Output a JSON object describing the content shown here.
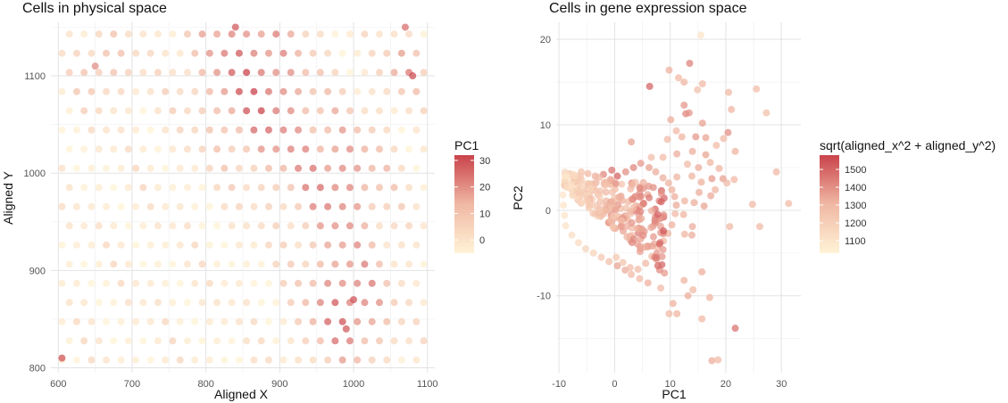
{
  "chart_data": [
    {
      "type": "scatter",
      "title": "Cells in physical space",
      "xlabel": "Aligned X",
      "ylabel": "Aligned Y",
      "xlim": [
        590,
        1110
      ],
      "ylim": [
        795,
        1155
      ],
      "x_ticks": [
        600,
        700,
        800,
        900,
        1000,
        1100
      ],
      "y_ticks": [
        800,
        900,
        1000,
        1100
      ],
      "grid": true,
      "legend": {
        "title": "PC1",
        "position": "right",
        "range": [
          -5,
          32
        ],
        "ticks": [
          0,
          10,
          20,
          30
        ],
        "low_color": "#fff3d6",
        "high_color": "#c9434b"
      },
      "layout": {
        "x_start": 605,
        "x_step": 20,
        "x_count": 25,
        "y_start": 808,
        "y_step": 19.7,
        "y_count": 18,
        "offset_odd_rows": 10
      },
      "sample_points": [
        {
          "x": 840,
          "y": 1150,
          "pc1": 28
        },
        {
          "x": 1080,
          "y": 1100,
          "pc1": 30
        },
        {
          "x": 1000,
          "y": 870,
          "pc1": 29
        },
        {
          "x": 990,
          "y": 840,
          "pc1": 28
        },
        {
          "x": 605,
          "y": 810,
          "pc1": 29
        },
        {
          "x": 1070,
          "y": 1150,
          "pc1": 25
        },
        {
          "x": 650,
          "y": 1110,
          "pc1": 20
        }
      ]
    },
    {
      "type": "scatter",
      "title": "Cells in gene expression space",
      "xlabel": "PC1",
      "ylabel": "PC2",
      "xlim": [
        -10.5,
        33.5
      ],
      "ylim": [
        -19,
        22
      ],
      "x_ticks": [
        -10,
        0,
        10,
        20,
        30
      ],
      "y_ticks": [
        -10,
        0,
        10,
        20
      ],
      "grid": true,
      "legend": {
        "title": "sqrt(aligned_x^2 + aligned_y^2)",
        "position": "right",
        "range": [
          1030,
          1580
        ],
        "ticks": [
          1100,
          1200,
          1300,
          1400,
          1500
        ],
        "low_color": "#fff3d6",
        "high_color": "#c9434b"
      },
      "points": [
        [
          15.5,
          20.5,
          1100
        ],
        [
          13.5,
          17.2,
          1430
        ],
        [
          9.8,
          16.4,
          1320
        ],
        [
          11.5,
          15.5,
          1300
        ],
        [
          15.8,
          14.8,
          1300
        ],
        [
          12.5,
          15.0,
          1310
        ],
        [
          6.3,
          14.5,
          1500
        ],
        [
          14.9,
          14.1,
          1260
        ],
        [
          25.5,
          14.2,
          1280
        ],
        [
          20.5,
          13.8,
          1300
        ],
        [
          12.5,
          12.3,
          1380
        ],
        [
          27.3,
          11.4,
          1270
        ],
        [
          21.0,
          11.8,
          1310
        ],
        [
          12.8,
          11.3,
          1420
        ],
        [
          13.4,
          11.4,
          1390
        ],
        [
          10.1,
          10.6,
          1330
        ],
        [
          15.8,
          10.2,
          1360
        ],
        [
          20.4,
          9.1,
          1400
        ],
        [
          11.1,
          9.3,
          1300
        ],
        [
          14.6,
          8.6,
          1380
        ],
        [
          16.4,
          8.5,
          1350
        ],
        [
          9.5,
          8.3,
          1300
        ],
        [
          12.1,
          8.6,
          1310
        ],
        [
          19.6,
          8.4,
          1300
        ],
        [
          3.0,
          8.0,
          1360
        ],
        [
          18.3,
          7.6,
          1290
        ],
        [
          21.7,
          6.9,
          1310
        ],
        [
          14.0,
          6.9,
          1330
        ],
        [
          16.4,
          6.5,
          1350
        ],
        [
          11.2,
          6.6,
          1330
        ],
        [
          6.6,
          6.2,
          1280
        ],
        [
          8.7,
          6.2,
          1290
        ],
        [
          17.2,
          5.6,
          1310
        ],
        [
          13.1,
          5.4,
          1290
        ],
        [
          15.1,
          5.0,
          1330
        ],
        [
          18.8,
          4.9,
          1310
        ],
        [
          29.1,
          4.5,
          1300
        ],
        [
          17.5,
          3.7,
          1370
        ],
        [
          19.5,
          3.7,
          1360
        ],
        [
          21.5,
          3.6,
          1300
        ],
        [
          11.2,
          3.9,
          1310
        ],
        [
          13.9,
          4.0,
          1310
        ],
        [
          15.6,
          3.3,
          1320
        ],
        [
          20.2,
          3.2,
          1300
        ],
        [
          15.2,
          2.1,
          1330
        ],
        [
          17.3,
          1.7,
          1340
        ],
        [
          18.1,
          2.4,
          1310
        ],
        [
          24.8,
          0.7,
          1300
        ],
        [
          31.3,
          0.8,
          1290
        ],
        [
          12.6,
          1.1,
          1310
        ],
        [
          16.1,
          0.5,
          1350
        ],
        [
          14.3,
          0.9,
          1330
        ],
        [
          12.4,
          -0.5,
          1310
        ],
        [
          14.0,
          -1.9,
          1330
        ],
        [
          20.7,
          -1.9,
          1300
        ],
        [
          26.1,
          -1.9,
          1300
        ],
        [
          12.6,
          -2.8,
          1310
        ],
        [
          13.9,
          -2.9,
          1330
        ],
        [
          15.7,
          -7.2,
          1330
        ],
        [
          12.5,
          -8.2,
          1310
        ],
        [
          14.1,
          -9.3,
          1300
        ],
        [
          17.1,
          -10.2,
          1310
        ],
        [
          13.2,
          -10.0,
          1330
        ],
        [
          10.5,
          -10.9,
          1320
        ],
        [
          9.8,
          -12.1,
          1300
        ],
        [
          11.2,
          -12.1,
          1310
        ],
        [
          15.7,
          -12.7,
          1300
        ],
        [
          21.7,
          -13.8,
          1460
        ],
        [
          17.5,
          -17.6,
          1330
        ],
        [
          18.6,
          -17.5,
          1300
        ],
        [
          8.3,
          -9.1,
          1290
        ],
        [
          6.0,
          -8.5,
          1320
        ],
        [
          4.5,
          -8.0,
          1290
        ],
        [
          3.0,
          -7.5,
          1300
        ],
        [
          1.9,
          -7.0,
          1330
        ],
        [
          0.5,
          -6.5,
          1350
        ],
        [
          -1.0,
          -6.0,
          1270
        ],
        [
          -2.4,
          -5.5,
          1230
        ],
        [
          -3.8,
          -5.0,
          1180
        ],
        [
          -5.2,
          -4.5,
          1170
        ],
        [
          -6.5,
          -3.8,
          1140
        ],
        [
          -7.7,
          -2.9,
          1130
        ],
        [
          -8.8,
          -1.8,
          1110
        ],
        [
          -9.0,
          -0.6,
          1100
        ],
        [
          -9.2,
          0.6,
          1100
        ],
        [
          -9.3,
          1.8,
          1090
        ],
        [
          -9.1,
          3.0,
          1080
        ],
        [
          -8.9,
          4.1,
          1080
        ],
        [
          -7.5,
          4.2,
          1160
        ],
        [
          -6.0,
          4.5,
          1250
        ],
        [
          -4.8,
          4.3,
          1300
        ],
        [
          -3.5,
          4.0,
          1330
        ],
        [
          -2.0,
          4.2,
          1420
        ],
        [
          -0.5,
          4.7,
          1460
        ],
        [
          0.5,
          4.0,
          1500
        ],
        [
          2.0,
          4.5,
          1400
        ],
        [
          3.4,
          5.0,
          1420
        ],
        [
          4.7,
          5.5,
          1380
        ],
        [
          6.2,
          5.0,
          1360
        ],
        [
          7.4,
          4.5,
          1330
        ],
        [
          8.7,
          3.8,
          1330
        ],
        [
          9.7,
          3.2,
          1320
        ],
        [
          10.3,
          2.4,
          1320
        ],
        [
          10.8,
          1.6,
          1330
        ],
        [
          11.1,
          0.6,
          1340
        ],
        [
          10.9,
          -0.4,
          1300
        ],
        [
          10.3,
          -1.7,
          1320
        ],
        [
          9.6,
          -2.7,
          1310
        ],
        [
          8.8,
          -3.6,
          1300
        ],
        [
          7.7,
          -4.4,
          1290
        ],
        [
          6.7,
          -5.4,
          1290
        ],
        [
          5.6,
          -6.2,
          1300
        ],
        [
          4.2,
          -6.9,
          1290
        ],
        [
          2.8,
          -6.7,
          1280
        ],
        [
          1.5,
          -6.1,
          1250
        ],
        [
          0.3,
          -5.5,
          1230
        ]
      ]
    }
  ]
}
